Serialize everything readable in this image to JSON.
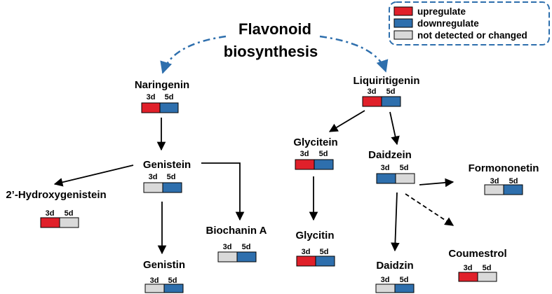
{
  "title": {
    "line1": "Flavonoid",
    "line2": "biosynthesis"
  },
  "colors": {
    "up": "#e0202a",
    "down": "#2e6fad",
    "none": "#d9d9d9",
    "legend_border": "#2e6fad",
    "dash_arrow": "#2e6fad"
  },
  "legend": [
    {
      "label": "upregulate",
      "state": "up"
    },
    {
      "label": "downregulate",
      "state": "down"
    },
    {
      "label": "not detected or changed",
      "state": "none"
    }
  ],
  "day_labels": [
    "3d",
    "5d"
  ],
  "compounds": {
    "naringenin": {
      "name": "Naringenin",
      "d3": "up",
      "d5": "down"
    },
    "liquiritigenin": {
      "name": "Liquiritigenin",
      "d3": "up",
      "d5": "down"
    },
    "genistein": {
      "name": "Genistein",
      "d3": "none",
      "d5": "down"
    },
    "glycitein": {
      "name": "Glycitein",
      "d3": "up",
      "d5": "down"
    },
    "daidzein": {
      "name": "Daidzein",
      "d3": "down",
      "d5": "none"
    },
    "formononetin": {
      "name": "Formononetin",
      "d3": "none",
      "d5": "down"
    },
    "hydroxygenistein": {
      "name": "2’-Hydroxygenistein",
      "d3": "up",
      "d5": "none"
    },
    "biochanin": {
      "name": "Biochanin A",
      "d3": "none",
      "d5": "down"
    },
    "glycitin": {
      "name": "Glycitin",
      "d3": "up",
      "d5": "down"
    },
    "genistin": {
      "name": "Genistin",
      "d3": "none",
      "d5": "down"
    },
    "daidzin": {
      "name": "Daidzin",
      "d3": "none",
      "d5": "down"
    },
    "coumestrol": {
      "name": "Coumestrol",
      "d3": "up",
      "d5": "none"
    }
  }
}
